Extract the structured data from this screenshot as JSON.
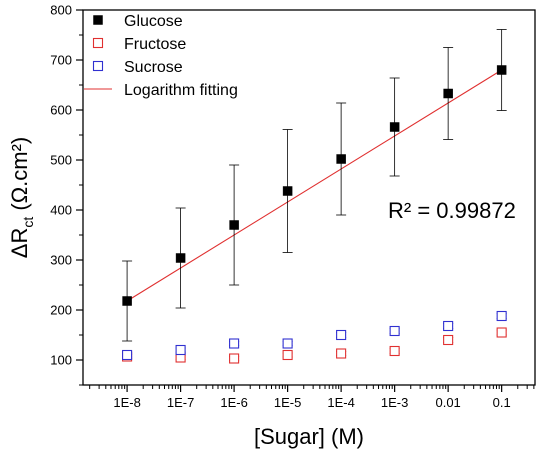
{
  "chart_data": {
    "type": "scatter",
    "x_scale": "log",
    "xlabel": "[Sugar] (M)",
    "ylabel_main": "ΔR",
    "ylabel_sub": "ct",
    "ylabel_units": " (Ω.cm²)",
    "x_ticks": [
      1e-08,
      1e-07,
      1e-06,
      1e-05,
      0.0001,
      0.001,
      0.01,
      0.1
    ],
    "x_tick_labels": [
      "1E-8",
      "1E-7",
      "1E-6",
      "1E-5",
      "1E-4",
      "1E-3",
      "0.01",
      "0.1"
    ],
    "xlim": [
      1.5e-09,
      0.42
    ],
    "ylim": [
      50,
      800
    ],
    "y_ticks": [
      100,
      200,
      300,
      400,
      500,
      600,
      700,
      800
    ],
    "y_tick_labels": [
      "100",
      "200",
      "300",
      "400",
      "500",
      "600",
      "700",
      "800"
    ],
    "series": [
      {
        "name": "Glucose",
        "marker": "filled-square",
        "color": "#000000",
        "x": [
          1e-08,
          1e-07,
          1e-06,
          1e-05,
          0.0001,
          0.001,
          0.01,
          0.1
        ],
        "y": [
          218,
          304,
          370,
          438,
          502,
          566,
          633,
          680
        ],
        "y_err": [
          80,
          100,
          120,
          123,
          112,
          98,
          92,
          81
        ]
      },
      {
        "name": "Fructose",
        "marker": "open-square",
        "color": "#e03030",
        "x": [
          1e-08,
          1e-07,
          1e-06,
          1e-05,
          0.0001,
          0.001,
          0.01,
          0.1
        ],
        "y": [
          107,
          105,
          103,
          110,
          113,
          118,
          140,
          155
        ],
        "y_err": [
          4,
          4,
          4,
          4,
          4,
          5,
          5,
          5
        ]
      },
      {
        "name": "Sucrose",
        "marker": "open-square",
        "color": "#3030d0",
        "x": [
          1e-08,
          1e-07,
          1e-06,
          1e-05,
          0.0001,
          0.001,
          0.01,
          0.1
        ],
        "y": [
          110,
          120,
          133,
          133,
          150,
          158,
          168,
          188
        ],
        "y_err": [
          4,
          4,
          4,
          4,
          5,
          5,
          5,
          5
        ]
      },
      {
        "name": "Logarithm fitting",
        "type": "line",
        "color": "#e03030",
        "x": [
          1e-08,
          0.1
        ],
        "y": [
          218,
          680
        ]
      }
    ],
    "annotation": "R² = 0.99872",
    "legend_position": "top-left",
    "grid": false
  }
}
